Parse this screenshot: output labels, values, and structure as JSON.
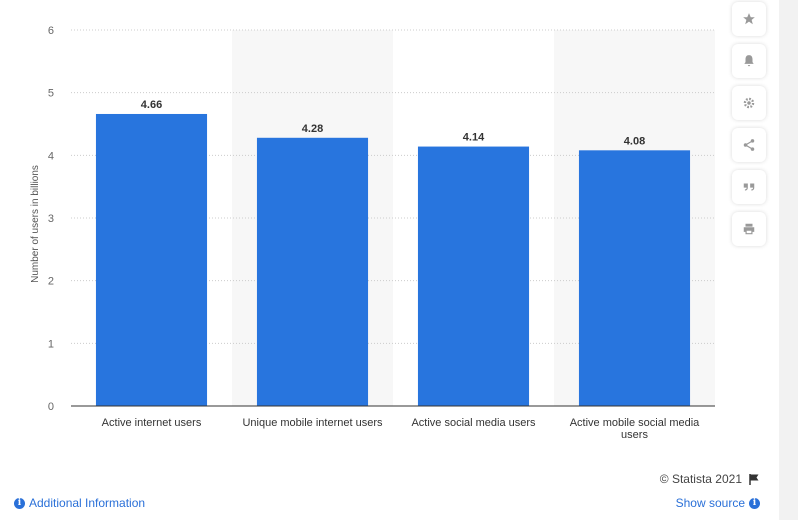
{
  "chart_data": {
    "type": "bar",
    "categories": [
      "Active internet users",
      "Unique mobile internet users",
      "Active social media users",
      "Active mobile social media users"
    ],
    "values": [
      4.66,
      4.28,
      4.14,
      4.08
    ],
    "value_labels": [
      "4.66",
      "4.28",
      "4.14",
      "4.08"
    ],
    "ylabel": "Number of users in billions",
    "ylim": [
      0,
      6
    ],
    "yticks": [
      "0",
      "1",
      "2",
      "3",
      "4",
      "5",
      "6"
    ],
    "bar_color": "#2875de",
    "grid": true
  },
  "footer": {
    "credit": "© Statista 2021",
    "additional_info": "Additional Information",
    "show_source": "Show source"
  },
  "toolbar": {
    "icons": [
      "star-icon",
      "bell-icon",
      "gear-icon",
      "share-icon",
      "quote-icon",
      "print-icon"
    ]
  }
}
